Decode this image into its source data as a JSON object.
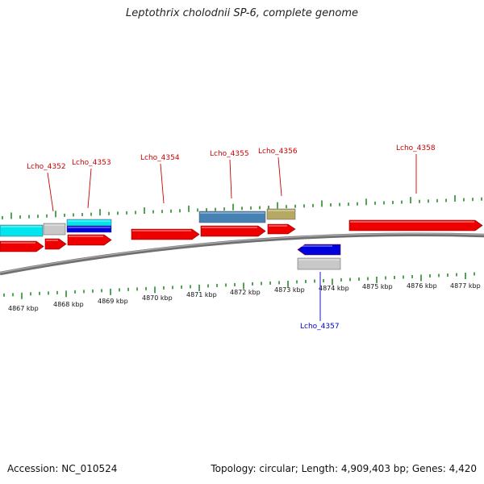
{
  "title": "Leptothrix cholodnii SP-6, complete genome",
  "footer": {
    "accession": "Accession: NC_010524",
    "summary": "Topology: circular; Length: 4,909,403 bp; Genes: 4,420"
  },
  "colors": {
    "forward_cds": "#ee0000",
    "reverse_cds": "#0000dd",
    "cyan_feature": "#00e5ee",
    "steelblue_feature": "#4682b4",
    "khaki_feature": "#b5a862",
    "gray_feature": "#c8c8c8",
    "backbone": "#888888",
    "tick_green": "#2a8a2a",
    "forward_label": "#cc0000",
    "reverse_label": "#0000cc"
  },
  "scale_labels": [
    "4867 kbp",
    "4868 kbp",
    "4869 kbp",
    "4870 kbp",
    "4871 kbp",
    "4872 kbp",
    "4873 kbp",
    "4874 kbp",
    "4875 kbp",
    "4876 kbp",
    "4877 kbp"
  ],
  "gene_labels": [
    {
      "name": "Lcho_4352",
      "strand": "forward"
    },
    {
      "name": "Lcho_4353",
      "strand": "forward"
    },
    {
      "name": "Lcho_4354",
      "strand": "forward"
    },
    {
      "name": "Lcho_4355",
      "strand": "forward"
    },
    {
      "name": "Lcho_4356",
      "strand": "forward"
    },
    {
      "name": "Lcho_4358",
      "strand": "forward"
    },
    {
      "name": "Lcho_4357",
      "strand": "reverse"
    }
  ]
}
